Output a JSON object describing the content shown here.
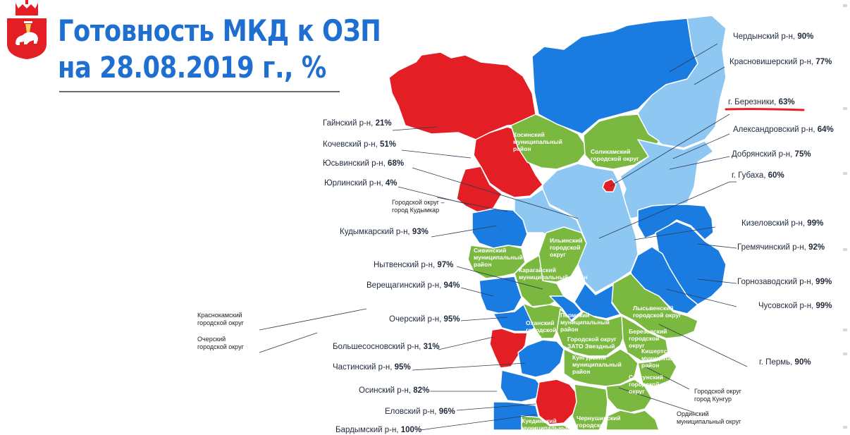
{
  "header": {
    "title_line1": "Готовность МКД к ОЗП",
    "title_line2": "на 28.08.2019 г., %"
  },
  "colors": {
    "title": "#1e6fd1",
    "high": "#1a7ce0",
    "mid": "#8ec7f2",
    "city": "#7ab840",
    "low": "#e31e24",
    "emblem_red": "#e31e24"
  },
  "emblem": {
    "icon": "perm-krai-coat-of-arms-icon"
  },
  "map_data": {
    "labels_right": [
      {
        "name": "Чердынский р-н,",
        "value": "90%"
      },
      {
        "name": "Красновишерский р-н,",
        "value": "77%"
      },
      {
        "name": "г. Березники,",
        "value": "63%"
      },
      {
        "name": "Александровский р-н,",
        "value": "64%"
      },
      {
        "name": "Добрянский р-н,",
        "value": "75%"
      },
      {
        "name": "г. Губаха,",
        "value": "60%"
      },
      {
        "name": "Кизеловский р-н,",
        "value": "99%"
      },
      {
        "name": "Гремячинский р-н,",
        "value": "92%"
      },
      {
        "name": "Горнозаводский р-н,",
        "value": "99%"
      },
      {
        "name": "Чусовской р-н,",
        "value": "99%"
      },
      {
        "name": "г. Пермь,",
        "value": "90%"
      }
    ],
    "labels_left": [
      {
        "name": "Гайнский р-н,",
        "value": "21%"
      },
      {
        "name": "Кочевский р-н,",
        "value": "51%"
      },
      {
        "name": "Юсьвинский р-н,",
        "value": "68%"
      },
      {
        "name": "Юрлинский р-н,",
        "value": "4%"
      },
      {
        "name": "Кудымкарский р-н,",
        "value": "93%"
      },
      {
        "name": "Нытвенский р-н,",
        "value": "97%"
      },
      {
        "name": "Верещагинский р-н,",
        "value": "94%"
      },
      {
        "name": "Очерский р-н,",
        "value": "95%"
      },
      {
        "name": "Большесосновский р-н,",
        "value": "31%"
      },
      {
        "name": "Частинский р-н,",
        "value": "95%"
      },
      {
        "name": "Осинский р-н,",
        "value": "82%"
      },
      {
        "name": "Еловский р-н,",
        "value": "96%"
      },
      {
        "name": "Бардымский р-н,",
        "value": "100%"
      }
    ],
    "notes": {
      "kudymkar": "Городской округ –\nгород Кудымкар",
      "krasnokamsk": "Краснокамский\nгородской округ",
      "ocher": "Очерский\nгородской округ",
      "kungur": "Городской округ\nгород Кунгур",
      "orda": "Ординский\nмуниципальный округ"
    },
    "in_map": {
      "kosinsky": "Косинский\nмуниципальный\nрайон",
      "solikamsky": "Соликамский\nгородской округ",
      "ilinsky": "Ильинский\nгородской\nокруг",
      "sivinsky": "Сивинский\nмуниципальный\nрайон",
      "karagaysky": "Карагайский\nмуниципальный район",
      "lysvensky": "Лысьвенский\nгородской округ",
      "okhansky": "Оханский\nгородской\nокруг",
      "permsky": "Пермский\nмуниципальный\nрайон",
      "berezovsky": "Березовский\nгородской\nокруг",
      "zato": "Городской округ\nЗАТО Звездный",
      "kishertsky": "Кишертский\nмуниципальный\nрайон",
      "kungursky": "Кунгурский\nмуниципальный\nрайон",
      "suksunsky": "Суксунский\nгородской\nокруг",
      "kuedinsky": "Куединский\nмуниципальный",
      "chernushinsky": "Чернушинский\nгородской"
    }
  }
}
